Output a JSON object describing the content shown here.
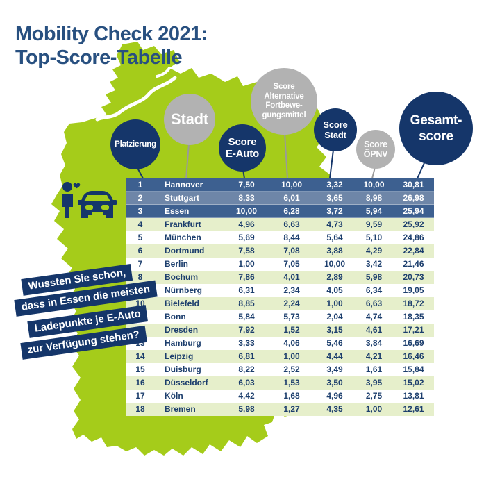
{
  "title": {
    "line1": "Mobility Check 2021:",
    "line2": "Top-Score-Tabelle"
  },
  "columns": [
    {
      "id": "platzierung",
      "label": "Platzierung",
      "style": "navy"
    },
    {
      "id": "stadt",
      "label": "Stadt",
      "style": "gray"
    },
    {
      "id": "score-e-auto",
      "label": "Score\nE-Auto",
      "style": "navy"
    },
    {
      "id": "score-alternative-fortbewegungsmittel",
      "label": "Score\nAlternative\nFortbewe-\ngungsmittel",
      "style": "gray"
    },
    {
      "id": "score-stadt",
      "label": "Score\nStadt",
      "style": "navy"
    },
    {
      "id": "score-oepnv",
      "label": "Score\nÖPNV",
      "style": "gray"
    },
    {
      "id": "gesamtscore",
      "label": "Gesamt-\nscore",
      "style": "navy"
    }
  ],
  "banner": {
    "lines": [
      "Wussten Sie schon,",
      "dass in Essen die meisten",
      "Ladepunkte je E-Auto",
      "zur Verfügung stehen?"
    ]
  },
  "icons": [
    "person-with-heart-icon",
    "car-front-icon"
  ],
  "colors": {
    "navy": "#15366a",
    "steel_dark": "#3d6090",
    "steel_light": "#6e86a8",
    "map_green": "#a5cc1a",
    "row_green": "#e6efcb",
    "gray_circle": "#b2b2b2",
    "table_text": "#1c3e6d",
    "title_blue": "#285080",
    "line_gray": "#9a9a9a"
  },
  "chart_data": {
    "type": "table",
    "title": "Mobility Check 2021: Top-Score-Tabelle",
    "columns": [
      "Platzierung",
      "Stadt",
      "Score E-Auto",
      "Score Alternative Fortbewegungsmittel",
      "Score Stadt",
      "Score ÖPNV",
      "Gesamtscore"
    ],
    "rows": [
      [
        "1",
        "Hannover",
        "7,50",
        "10,00",
        "3,32",
        "10,00",
        "30,81"
      ],
      [
        "2",
        "Stuttgart",
        "8,33",
        "6,01",
        "3,65",
        "8,98",
        "26,98"
      ],
      [
        "3",
        "Essen",
        "10,00",
        "6,28",
        "3,72",
        "5,94",
        "25,94"
      ],
      [
        "4",
        "Frankfurt",
        "4,96",
        "6,63",
        "4,73",
        "9,59",
        "25,92"
      ],
      [
        "5",
        "München",
        "5,69",
        "8,44",
        "5,64",
        "5,10",
        "24,86"
      ],
      [
        "6",
        "Dortmund",
        "7,58",
        "7,08",
        "3,88",
        "4,29",
        "22,84"
      ],
      [
        "7",
        "Berlin",
        "1,00",
        "7,05",
        "10,00",
        "3,42",
        "21,46"
      ],
      [
        "8",
        "Bochum",
        "7,86",
        "4,01",
        "2,89",
        "5,98",
        "20,73"
      ],
      [
        "9",
        "Nürnberg",
        "6,31",
        "2,34",
        "4,05",
        "6,34",
        "19,05"
      ],
      [
        "10",
        "Bielefeld",
        "8,85",
        "2,24",
        "1,00",
        "6,63",
        "18,72"
      ],
      [
        "11",
        "Bonn",
        "5,84",
        "5,73",
        "2,04",
        "4,74",
        "18,35"
      ],
      [
        "12",
        "Dresden",
        "7,92",
        "1,52",
        "3,15",
        "4,61",
        "17,21"
      ],
      [
        "13",
        "Hamburg",
        "3,33",
        "4,06",
        "5,46",
        "3,84",
        "16,69"
      ],
      [
        "14",
        "Leipzig",
        "6,81",
        "1,00",
        "4,44",
        "4,21",
        "16,46"
      ],
      [
        "15",
        "Duisburg",
        "8,22",
        "2,52",
        "3,49",
        "1,61",
        "15,84"
      ],
      [
        "16",
        "Düsseldorf",
        "6,03",
        "1,53",
        "3,50",
        "3,95",
        "15,02"
      ],
      [
        "17",
        "Köln",
        "4,42",
        "1,68",
        "4,96",
        "2,75",
        "13,81"
      ],
      [
        "18",
        "Bremen",
        "5,98",
        "1,27",
        "4,35",
        "1,00",
        "12,61"
      ]
    ],
    "legend_position": "none",
    "notes": "Top 3 rows highlighted blue; rows 4-18 alternate light green and white"
  }
}
